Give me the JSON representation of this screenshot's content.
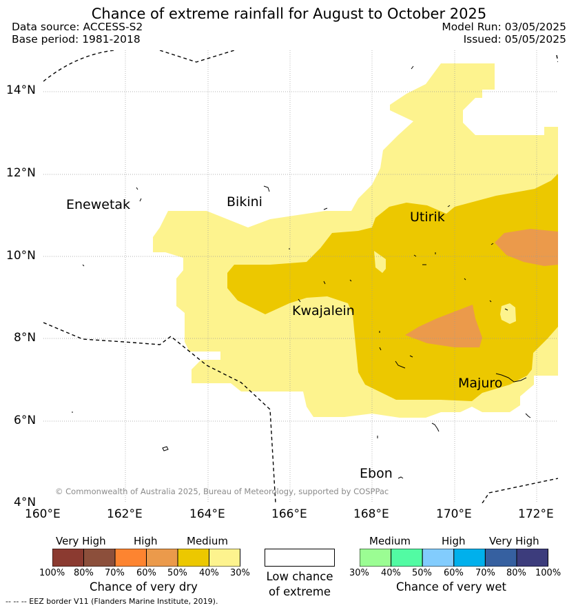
{
  "header": {
    "title": "Chance of extreme rainfall for August to October 2025",
    "data_source": "Data source: ACCESS-S2",
    "base_period": "Base period: 1981-2018",
    "model_run": "Model Run: 03/05/2025",
    "issued": "Issued: 05/05/2025"
  },
  "map": {
    "lat_labels": [
      "14°N",
      "12°N",
      "10°N",
      "8°N",
      "6°N",
      "4°N"
    ],
    "lon_labels": [
      "160°E",
      "162°E",
      "164°E",
      "166°E",
      "168°E",
      "170°E",
      "172°E"
    ],
    "places": {
      "enewetak": "Enewetak",
      "bikini": "Bikini",
      "utirik": "Utirik",
      "kwajalein": "Kwajalein",
      "majuro": "Majuro",
      "ebon": "Ebon"
    },
    "copyright": "© Commonwealth of Australia 2025, Bureau of Meteorology, supported by COSPPac"
  },
  "legend": {
    "dry": {
      "categories": [
        "Very High",
        "High",
        "Medium"
      ],
      "ticks": [
        "100%",
        "80%",
        "70%",
        "60%",
        "50%",
        "40%",
        "30%"
      ],
      "colors": [
        "#8b3a30",
        "#8c4f3b",
        "#fd8430",
        "#eb9a4b",
        "#ecc800",
        "#fdf38e"
      ],
      "title": "Chance of very dry"
    },
    "low": {
      "line1": "Low chance",
      "line2": "of extreme"
    },
    "wet": {
      "categories": [
        "Medium",
        "High",
        "Very High"
      ],
      "ticks": [
        "30%",
        "40%",
        "50%",
        "60%",
        "70%",
        "80%",
        "100%"
      ],
      "colors": [
        "#9bfd93",
        "#52fba3",
        "#82ccfd",
        "#00b0ec",
        "#3660a0",
        "#3c3c7c"
      ],
      "title": "Chance of very wet"
    }
  },
  "eez_note": "--  --  -- EEZ border V11 (Flanders Marine Institute, 2019).",
  "colors": {
    "medium_dry": "#fdf38e",
    "high_dry": "#ecc800",
    "very_high_60": "#eb9a4b"
  }
}
